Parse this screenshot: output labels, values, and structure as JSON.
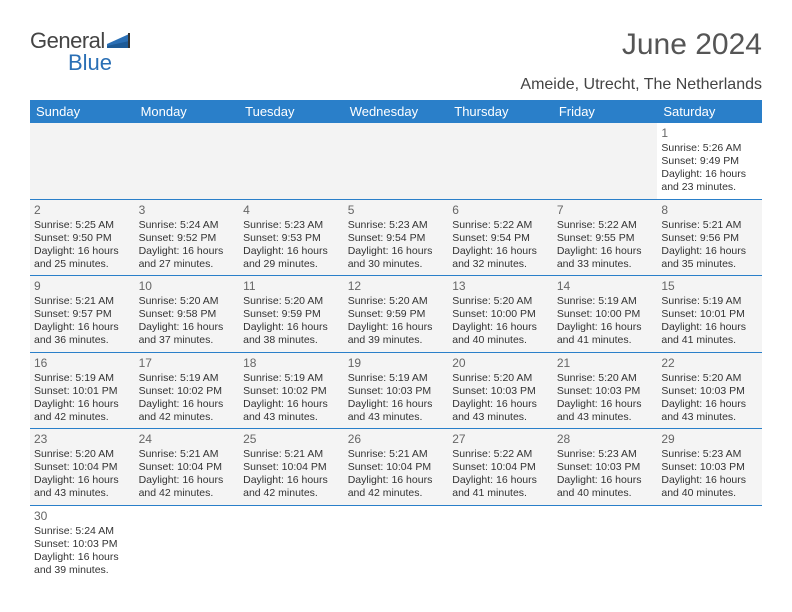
{
  "brand": {
    "part1": "General",
    "part2": "Blue"
  },
  "title": "June 2024",
  "location": "Ameide, Utrecht, The Netherlands",
  "colors": {
    "header_bg": "#2a7fc9",
    "header_fg": "#ffffff",
    "cell_bg": "#f4f4f4",
    "border": "#2a7fc9",
    "text": "#333333",
    "title": "#555555",
    "logo_gray": "#444444",
    "logo_blue": "#2a6fb5"
  },
  "day_headers": [
    "Sunday",
    "Monday",
    "Tuesday",
    "Wednesday",
    "Thursday",
    "Friday",
    "Saturday"
  ],
  "weeks": [
    [
      null,
      null,
      null,
      null,
      null,
      null,
      {
        "n": "1",
        "sr": "Sunrise: 5:26 AM",
        "ss": "Sunset: 9:49 PM",
        "d1": "Daylight: 16 hours",
        "d2": "and 23 minutes."
      }
    ],
    [
      {
        "n": "2",
        "sr": "Sunrise: 5:25 AM",
        "ss": "Sunset: 9:50 PM",
        "d1": "Daylight: 16 hours",
        "d2": "and 25 minutes."
      },
      {
        "n": "3",
        "sr": "Sunrise: 5:24 AM",
        "ss": "Sunset: 9:52 PM",
        "d1": "Daylight: 16 hours",
        "d2": "and 27 minutes."
      },
      {
        "n": "4",
        "sr": "Sunrise: 5:23 AM",
        "ss": "Sunset: 9:53 PM",
        "d1": "Daylight: 16 hours",
        "d2": "and 29 minutes."
      },
      {
        "n": "5",
        "sr": "Sunrise: 5:23 AM",
        "ss": "Sunset: 9:54 PM",
        "d1": "Daylight: 16 hours",
        "d2": "and 30 minutes."
      },
      {
        "n": "6",
        "sr": "Sunrise: 5:22 AM",
        "ss": "Sunset: 9:54 PM",
        "d1": "Daylight: 16 hours",
        "d2": "and 32 minutes."
      },
      {
        "n": "7",
        "sr": "Sunrise: 5:22 AM",
        "ss": "Sunset: 9:55 PM",
        "d1": "Daylight: 16 hours",
        "d2": "and 33 minutes."
      },
      {
        "n": "8",
        "sr": "Sunrise: 5:21 AM",
        "ss": "Sunset: 9:56 PM",
        "d1": "Daylight: 16 hours",
        "d2": "and 35 minutes."
      }
    ],
    [
      {
        "n": "9",
        "sr": "Sunrise: 5:21 AM",
        "ss": "Sunset: 9:57 PM",
        "d1": "Daylight: 16 hours",
        "d2": "and 36 minutes."
      },
      {
        "n": "10",
        "sr": "Sunrise: 5:20 AM",
        "ss": "Sunset: 9:58 PM",
        "d1": "Daylight: 16 hours",
        "d2": "and 37 minutes."
      },
      {
        "n": "11",
        "sr": "Sunrise: 5:20 AM",
        "ss": "Sunset: 9:59 PM",
        "d1": "Daylight: 16 hours",
        "d2": "and 38 minutes."
      },
      {
        "n": "12",
        "sr": "Sunrise: 5:20 AM",
        "ss": "Sunset: 9:59 PM",
        "d1": "Daylight: 16 hours",
        "d2": "and 39 minutes."
      },
      {
        "n": "13",
        "sr": "Sunrise: 5:20 AM",
        "ss": "Sunset: 10:00 PM",
        "d1": "Daylight: 16 hours",
        "d2": "and 40 minutes."
      },
      {
        "n": "14",
        "sr": "Sunrise: 5:19 AM",
        "ss": "Sunset: 10:00 PM",
        "d1": "Daylight: 16 hours",
        "d2": "and 41 minutes."
      },
      {
        "n": "15",
        "sr": "Sunrise: 5:19 AM",
        "ss": "Sunset: 10:01 PM",
        "d1": "Daylight: 16 hours",
        "d2": "and 41 minutes."
      }
    ],
    [
      {
        "n": "16",
        "sr": "Sunrise: 5:19 AM",
        "ss": "Sunset: 10:01 PM",
        "d1": "Daylight: 16 hours",
        "d2": "and 42 minutes."
      },
      {
        "n": "17",
        "sr": "Sunrise: 5:19 AM",
        "ss": "Sunset: 10:02 PM",
        "d1": "Daylight: 16 hours",
        "d2": "and 42 minutes."
      },
      {
        "n": "18",
        "sr": "Sunrise: 5:19 AM",
        "ss": "Sunset: 10:02 PM",
        "d1": "Daylight: 16 hours",
        "d2": "and 43 minutes."
      },
      {
        "n": "19",
        "sr": "Sunrise: 5:19 AM",
        "ss": "Sunset: 10:03 PM",
        "d1": "Daylight: 16 hours",
        "d2": "and 43 minutes."
      },
      {
        "n": "20",
        "sr": "Sunrise: 5:20 AM",
        "ss": "Sunset: 10:03 PM",
        "d1": "Daylight: 16 hours",
        "d2": "and 43 minutes."
      },
      {
        "n": "21",
        "sr": "Sunrise: 5:20 AM",
        "ss": "Sunset: 10:03 PM",
        "d1": "Daylight: 16 hours",
        "d2": "and 43 minutes."
      },
      {
        "n": "22",
        "sr": "Sunrise: 5:20 AM",
        "ss": "Sunset: 10:03 PM",
        "d1": "Daylight: 16 hours",
        "d2": "and 43 minutes."
      }
    ],
    [
      {
        "n": "23",
        "sr": "Sunrise: 5:20 AM",
        "ss": "Sunset: 10:04 PM",
        "d1": "Daylight: 16 hours",
        "d2": "and 43 minutes."
      },
      {
        "n": "24",
        "sr": "Sunrise: 5:21 AM",
        "ss": "Sunset: 10:04 PM",
        "d1": "Daylight: 16 hours",
        "d2": "and 42 minutes."
      },
      {
        "n": "25",
        "sr": "Sunrise: 5:21 AM",
        "ss": "Sunset: 10:04 PM",
        "d1": "Daylight: 16 hours",
        "d2": "and 42 minutes."
      },
      {
        "n": "26",
        "sr": "Sunrise: 5:21 AM",
        "ss": "Sunset: 10:04 PM",
        "d1": "Daylight: 16 hours",
        "d2": "and 42 minutes."
      },
      {
        "n": "27",
        "sr": "Sunrise: 5:22 AM",
        "ss": "Sunset: 10:04 PM",
        "d1": "Daylight: 16 hours",
        "d2": "and 41 minutes."
      },
      {
        "n": "28",
        "sr": "Sunrise: 5:23 AM",
        "ss": "Sunset: 10:03 PM",
        "d1": "Daylight: 16 hours",
        "d2": "and 40 minutes."
      },
      {
        "n": "29",
        "sr": "Sunrise: 5:23 AM",
        "ss": "Sunset: 10:03 PM",
        "d1": "Daylight: 16 hours",
        "d2": "and 40 minutes."
      }
    ],
    [
      {
        "n": "30",
        "sr": "Sunrise: 5:24 AM",
        "ss": "Sunset: 10:03 PM",
        "d1": "Daylight: 16 hours",
        "d2": "and 39 minutes."
      },
      null,
      null,
      null,
      null,
      null,
      null
    ]
  ]
}
